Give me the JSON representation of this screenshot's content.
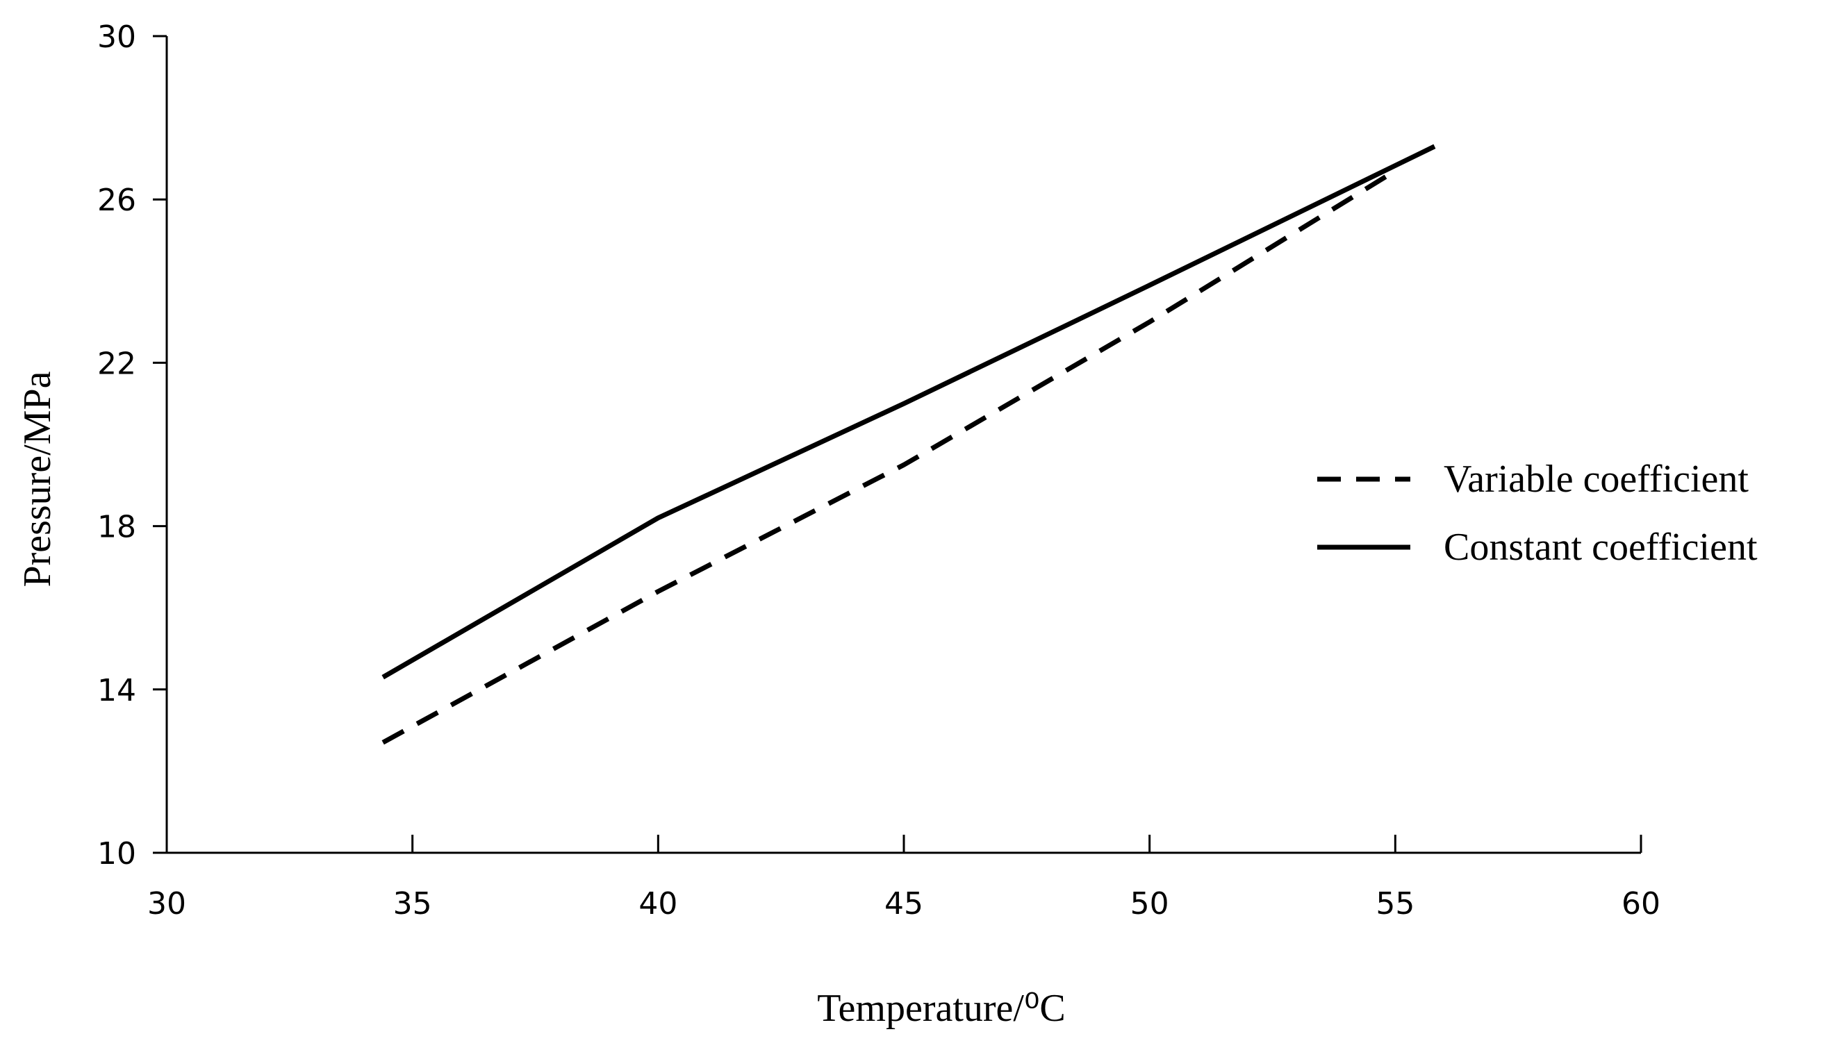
{
  "chart_data": {
    "type": "line",
    "title": "",
    "xlabel": "Temperature/⁰C",
    "ylabel": "Pressure/MPa",
    "xlim": [
      30,
      60
    ],
    "ylim": [
      10,
      30
    ],
    "x_ticks": [
      30,
      35,
      40,
      45,
      50,
      55,
      60
    ],
    "y_ticks": [
      10,
      14,
      18,
      22,
      26,
      30
    ],
    "grid": false,
    "legend_position": "right",
    "series": [
      {
        "name": "Variable coefficient",
        "style": "dashed",
        "color": "#000000",
        "x": [
          34.4,
          40,
          45,
          50,
          55
        ],
        "y": [
          12.7,
          16.4,
          19.5,
          23.0,
          26.7
        ]
      },
      {
        "name": "Constant coefficient",
        "style": "solid",
        "color": "#000000",
        "x": [
          34.4,
          40,
          45,
          50,
          55.8
        ],
        "y": [
          14.3,
          18.2,
          21.0,
          23.9,
          27.3
        ]
      }
    ]
  }
}
